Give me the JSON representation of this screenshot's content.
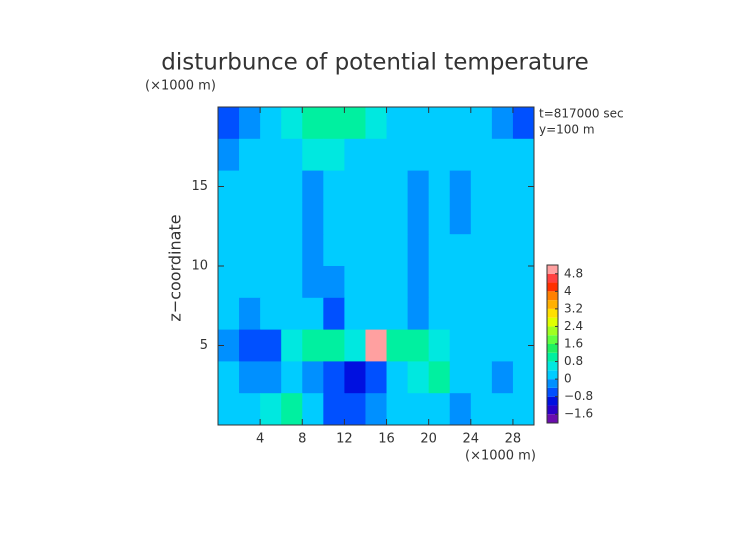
{
  "chart_data": {
    "type": "contour",
    "title": "disturbunce of potential temperature",
    "y_unit_label": "(×1000 m)",
    "x_unit_label": "(×1000 m)",
    "ylabel": "z−coordinate",
    "annotations": [
      "t=817000 sec",
      "y=100 m"
    ],
    "xlim": [
      0,
      30
    ],
    "ylim": [
      0,
      20
    ],
    "xticks": [
      4,
      8,
      12,
      16,
      20,
      24,
      28
    ],
    "yticks": [
      5,
      10,
      15
    ],
    "x": [
      1,
      3,
      5,
      7,
      9,
      11,
      13,
      15,
      17,
      19,
      21,
      23,
      25,
      27,
      29
    ],
    "y": [
      19,
      17,
      15,
      13,
      11,
      9,
      7,
      5,
      3,
      1
    ],
    "z": [
      [
        -0.6,
        -0.3,
        0.2,
        0.4,
        0.9,
        1.0,
        0.9,
        0.5,
        0.3,
        0.2,
        0.1,
        0.2,
        0.1,
        -0.2,
        -0.5
      ],
      [
        -0.1,
        0.2,
        0.3,
        0.3,
        0.7,
        0.5,
        0.3,
        0.2,
        0.2,
        0.1,
        0.3,
        0.2,
        0.2,
        0.1,
        0.0
      ],
      [
        0.3,
        0.2,
        0.2,
        0.1,
        -0.1,
        0.3,
        0.2,
        0.2,
        0.1,
        -0.1,
        0.2,
        -0.2,
        0.2,
        0.3,
        0.2
      ],
      [
        0.2,
        0.3,
        0.2,
        0.0,
        -0.2,
        0.1,
        0.3,
        0.2,
        0.2,
        -0.2,
        0.1,
        -0.3,
        0.1,
        0.2,
        0.3
      ],
      [
        0.2,
        0.2,
        0.3,
        0.1,
        -0.2,
        0.0,
        0.1,
        0.3,
        0.1,
        -0.2,
        0.0,
        0.2,
        0.2,
        0.3,
        0.2
      ],
      [
        0.3,
        0.2,
        0.1,
        0.2,
        -0.1,
        -0.3,
        0.2,
        0.2,
        0.2,
        -0.3,
        0.1,
        0.2,
        0.1,
        0.3,
        0.2
      ],
      [
        0.1,
        -0.3,
        0.0,
        0.2,
        0.3,
        -0.6,
        0.2,
        0.3,
        0.1,
        -0.2,
        0.2,
        0.3,
        0.2,
        0.1,
        0.2
      ],
      [
        -0.2,
        -0.6,
        -0.5,
        0.4,
        0.9,
        0.8,
        0.6,
        5.0,
        1.0,
        1.1,
        0.6,
        0.3,
        0.2,
        0.2,
        0.1
      ],
      [
        0.2,
        -0.2,
        -0.1,
        0.3,
        -0.4,
        -0.6,
        -1.1,
        -0.8,
        0.2,
        0.4,
        0.8,
        0.3,
        0.2,
        -0.2,
        0.2
      ],
      [
        0.2,
        0.1,
        0.4,
        1.0,
        0.3,
        -0.5,
        -0.8,
        -0.4,
        0.2,
        0.3,
        0.3,
        -0.3,
        0.2,
        0.1,
        0.2
      ]
    ],
    "levels": [
      -2.0,
      -1.6,
      -1.2,
      -0.8,
      -0.4,
      0,
      0.4,
      0.8,
      1.2,
      1.6,
      2.0,
      2.4,
      2.8,
      3.2,
      3.6,
      4.0,
      4.4,
      4.8,
      5.2
    ],
    "colors": [
      "#6a0dad",
      "#2a00c8",
      "#0010e0",
      "#0050ff",
      "#0090ff",
      "#00ccff",
      "#00e8e0",
      "#00f0a0",
      "#20f060",
      "#60ff40",
      "#a0ff20",
      "#e0ff00",
      "#ffe000",
      "#ffb000",
      "#ff8000",
      "#ff3000",
      "#ff4040",
      "#ffa0a0"
    ],
    "over_color": "#ffffff",
    "colorbar_ticks": [
      {
        "value": -1.6,
        "label": "−1.6"
      },
      {
        "value": -0.8,
        "label": "−0.8"
      },
      0,
      0.8,
      1.6,
      2.4,
      3.2,
      4,
      4.8
    ]
  }
}
